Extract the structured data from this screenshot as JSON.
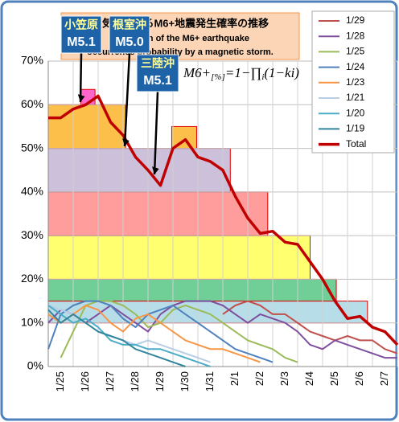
{
  "chart_data": {
    "type": "line",
    "title": "磁気嵐によるM6+地震発生確率の推移",
    "subtitle": [
      "Transition of the M6+ earthquake",
      "occurrence probability by a magnetic storm."
    ],
    "formula": {
      "main": "M6+",
      "sub": "[%]",
      "rest": "=1−∏",
      "sub2": "i",
      "end": "(1−ki)"
    },
    "annotations": [
      {
        "line1": "小笠原",
        "line2": "M5.1"
      },
      {
        "line1": "根室沖",
        "line2": "M5.0"
      },
      {
        "line1": "三陸沖",
        "line2": "M5.1"
      }
    ],
    "categories": [
      null,
      "1/25",
      null,
      "1/26",
      null,
      "1/27",
      null,
      "1/28",
      null,
      "1/29",
      null,
      "1/30",
      null,
      "1/31",
      null,
      "2/1",
      null,
      "2/2",
      null,
      "2/3",
      null,
      "2/4",
      null,
      "2/5",
      null,
      "2/6",
      null,
      "2/7",
      null
    ],
    "ylim": [
      0,
      70
    ],
    "yticks": [
      {
        "value": 0,
        "label": "0%"
      },
      {
        "value": 10,
        "label": "10%"
      },
      {
        "value": 20,
        "label": "20%"
      },
      {
        "value": 30,
        "label": "30%"
      },
      {
        "value": 40,
        "label": "40%"
      },
      {
        "value": 50,
        "label": "50%"
      },
      {
        "value": 60,
        "label": "60%"
      },
      {
        "value": 70,
        "label": "70%"
      }
    ],
    "grid": true,
    "bands": [
      {
        "bottom": 10,
        "top": 15,
        "start": 0,
        "end": 25.6,
        "color": "#b7dee8"
      },
      {
        "bottom": 15,
        "top": 20,
        "start": 0,
        "end": 23.1,
        "color": "#6fcf97"
      },
      {
        "bottom": 20,
        "top": 30,
        "start": 0,
        "end": 21,
        "color": "#ffff70"
      },
      {
        "bottom": 30,
        "top": 40,
        "start": 0,
        "end": 17.6,
        "color": "#ff9c9c"
      },
      {
        "bottom": 40,
        "top": 50,
        "start": 0,
        "end": 14.6,
        "color": "#ccc0da"
      },
      {
        "bottom": 50,
        "top": 55,
        "start": 9.9,
        "end": 11.9,
        "color": "#fbbf4a"
      },
      {
        "bottom": 50,
        "top": 60,
        "start": 0,
        "end": 6.2,
        "color": "#fbbf4a"
      },
      {
        "bottom": 60,
        "top": 63.5,
        "start": 2.6,
        "end": 3.75,
        "color": "#ff66cc"
      }
    ],
    "series": [
      {
        "name": "1/29",
        "color": "#c0504d",
        "values": [
          null,
          null,
          null,
          null,
          null,
          null,
          null,
          null,
          null,
          null,
          null,
          null,
          null,
          null,
          12,
          14,
          15,
          14,
          12,
          12,
          10,
          8,
          7,
          6,
          7,
          6,
          6,
          4,
          3
        ]
      },
      {
        "name": "1/28",
        "color": "#7f4f9f",
        "values": [
          10,
          13,
          12,
          10,
          12,
          14,
          12,
          10,
          8,
          12,
          14,
          15,
          15,
          15,
          14,
          12,
          10,
          12,
          11,
          10,
          8,
          5,
          4,
          6,
          5,
          4,
          3,
          2,
          2
        ]
      },
      {
        "name": "1/25",
        "color": "#9bbb59",
        "values": [
          null,
          2,
          8,
          14,
          15,
          15,
          14,
          12,
          9,
          10,
          13,
          14,
          13,
          12,
          10,
          8,
          6,
          5,
          4,
          2,
          1,
          null,
          null,
          null,
          null,
          null,
          null,
          null,
          null
        ]
      },
      {
        "name": "1/24",
        "color": "#4f81bd",
        "values": [
          4,
          12,
          14,
          15,
          15,
          14,
          11,
          9,
          12,
          13,
          14,
          12,
          10,
          8,
          6,
          4,
          3,
          2,
          1,
          null,
          null,
          null,
          null,
          null,
          null,
          null,
          null,
          null,
          null
        ]
      },
      {
        "name": "1/23",
        "color": "#f79646",
        "values": [
          12,
          10,
          12,
          14,
          13,
          10,
          8,
          11,
          12,
          10,
          8,
          6,
          5,
          4,
          4,
          3,
          2,
          1,
          null,
          null,
          null,
          null,
          null,
          null,
          null,
          null,
          null,
          null,
          null
        ]
      },
      {
        "name": "1/21",
        "color": "#b9cde5",
        "values": [
          14,
          13,
          12,
          10,
          8,
          7,
          6,
          5,
          6,
          5,
          4,
          3,
          2,
          1,
          null,
          null,
          null,
          null,
          null,
          null,
          null,
          null,
          null,
          null,
          null,
          null,
          null,
          null,
          null
        ]
      },
      {
        "name": "1/20",
        "color": "#4bacc6",
        "values": [
          14,
          12,
          10,
          11,
          9,
          6,
          5,
          5,
          4,
          4,
          3,
          2,
          1,
          0,
          null,
          null,
          null,
          null,
          null,
          null,
          null,
          null,
          null,
          null,
          null,
          null,
          null,
          null,
          null
        ]
      },
      {
        "name": "1/19",
        "color": "#31859c",
        "values": [
          13,
          10,
          12,
          10,
          8,
          7,
          6,
          4,
          3,
          2,
          1,
          0,
          null,
          null,
          null,
          null,
          null,
          null,
          null,
          null,
          null,
          null,
          null,
          null,
          null,
          null,
          null,
          null,
          null
        ]
      },
      {
        "name": "Total",
        "color": "#c00000",
        "values": [
          57,
          57,
          59,
          60,
          62,
          56,
          53,
          48,
          45,
          41.5,
          50,
          52,
          48,
          47,
          45,
          39,
          34,
          30.5,
          31,
          28.5,
          28,
          24,
          20,
          15,
          11,
          11.5,
          9,
          8,
          5
        ]
      }
    ]
  }
}
